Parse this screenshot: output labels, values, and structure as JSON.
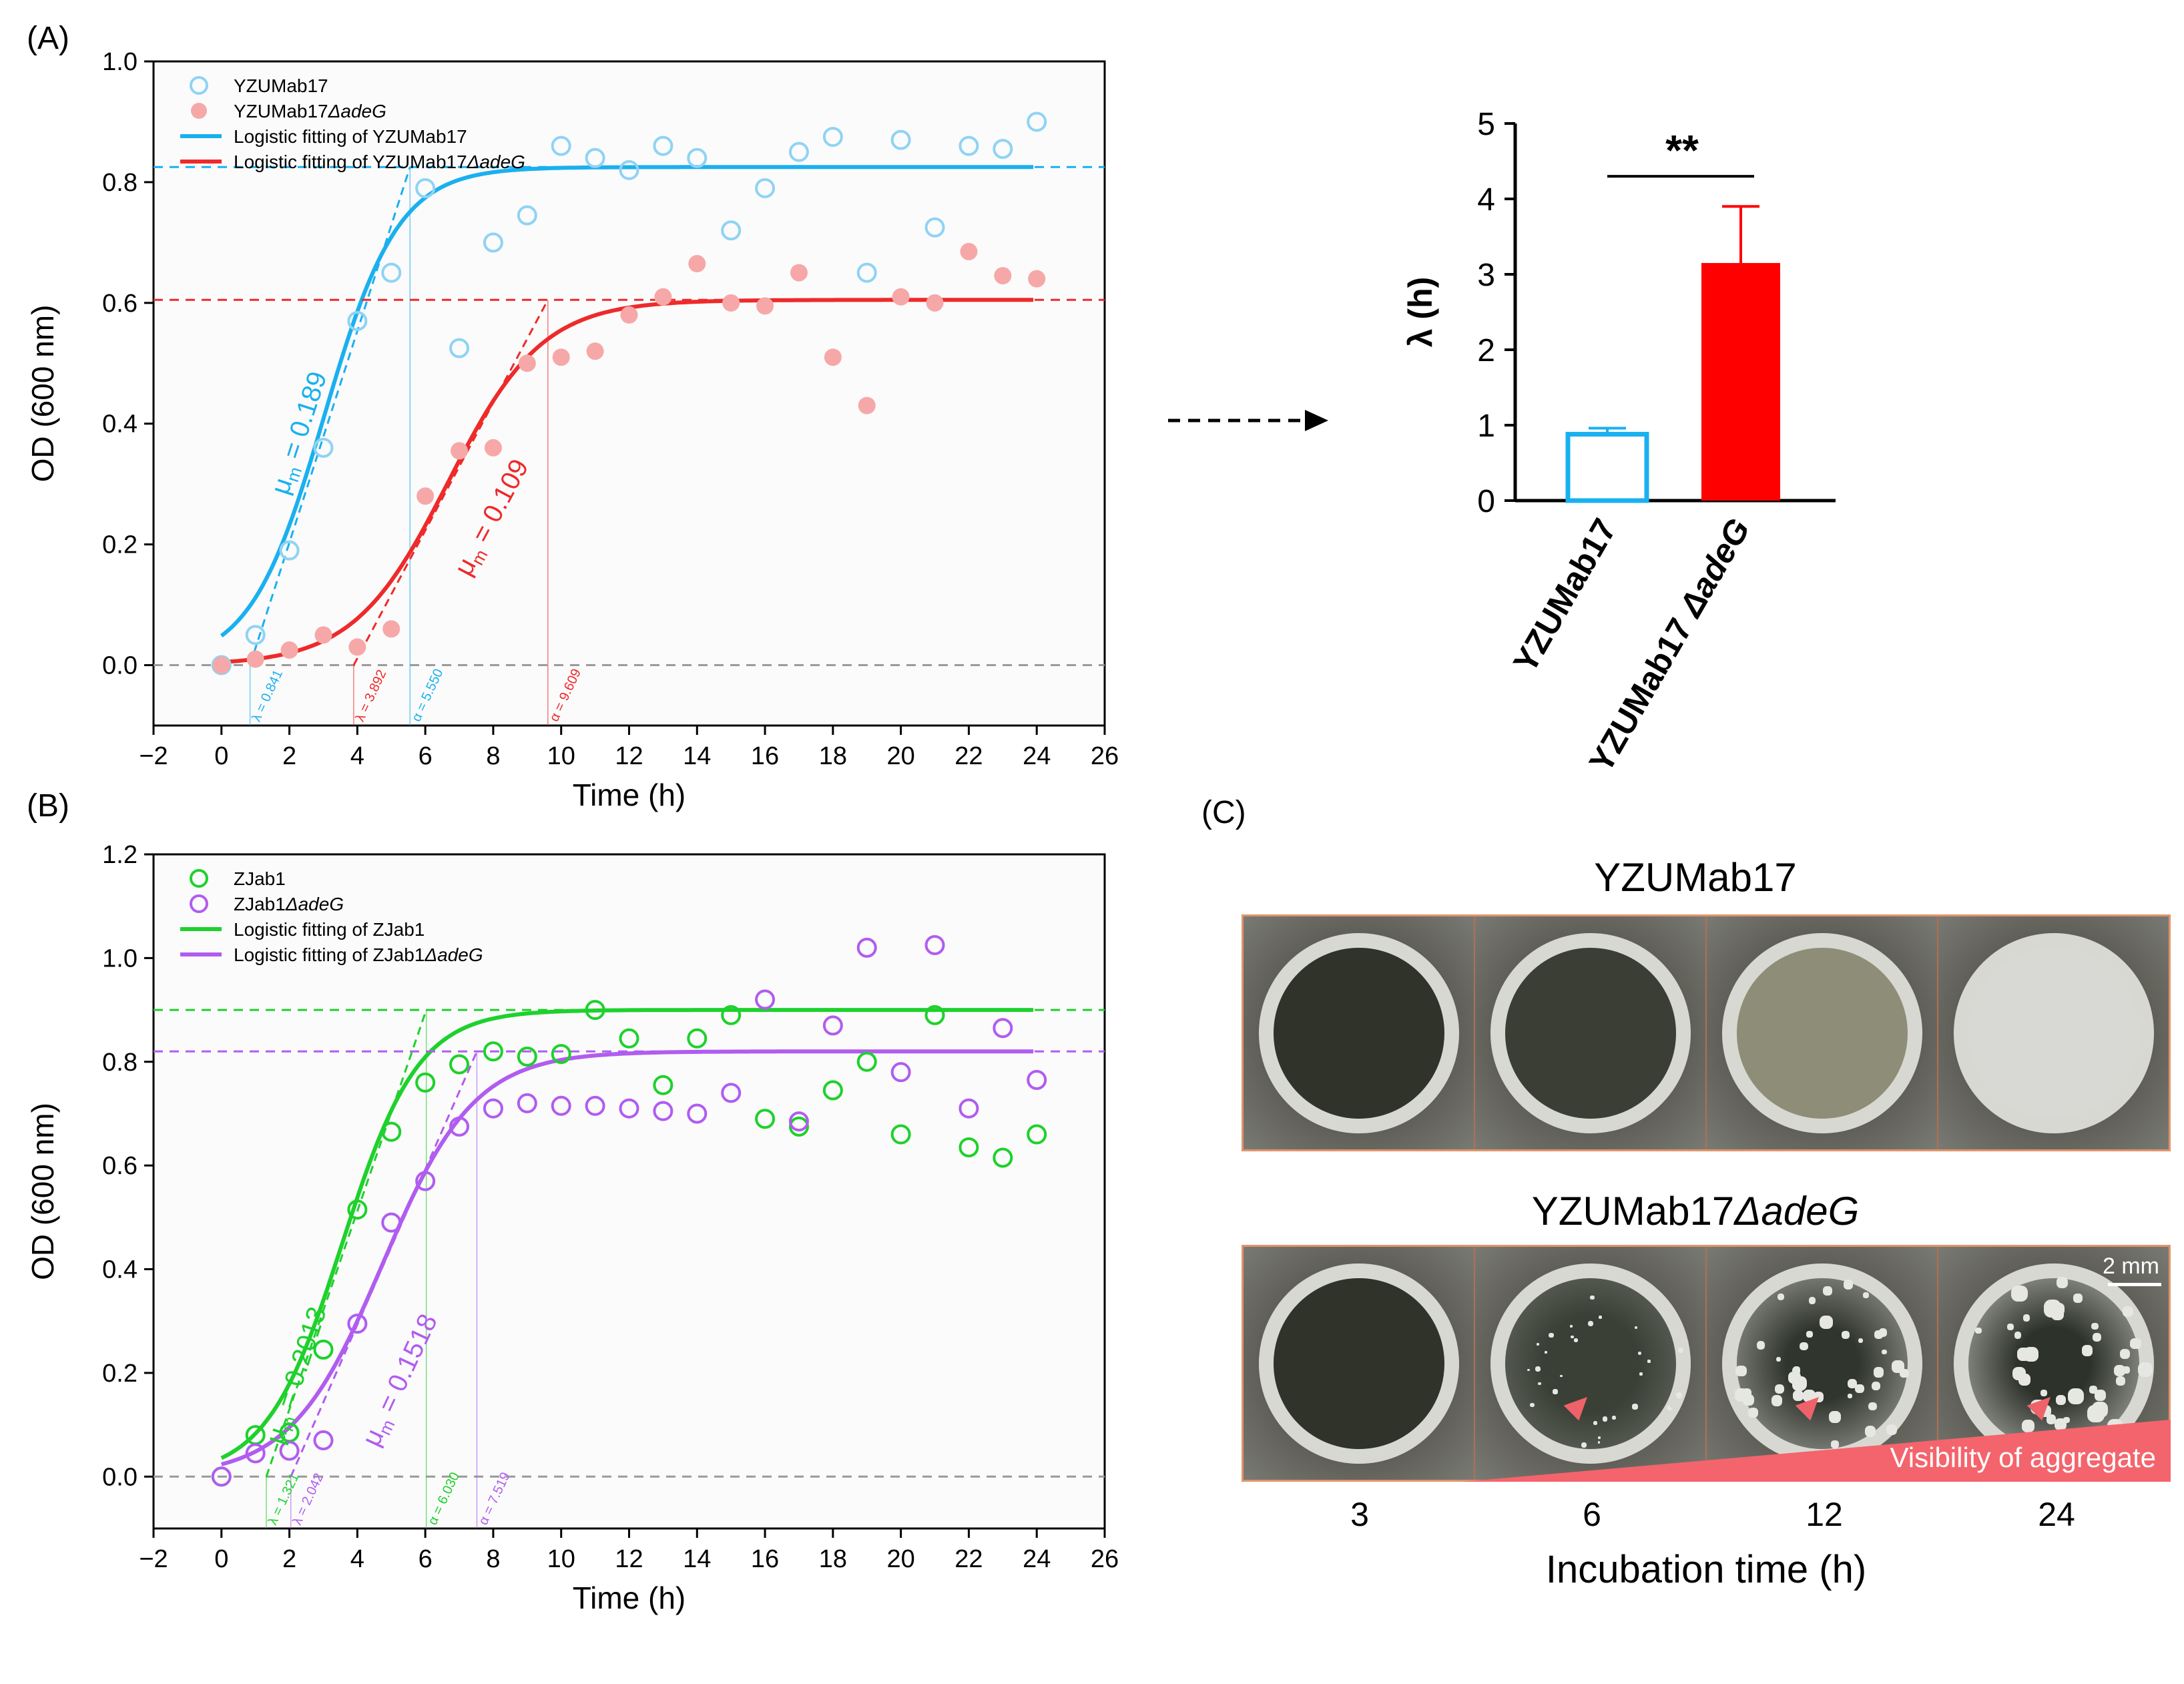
{
  "panels": {
    "A": "(A)",
    "B": "(B)",
    "C": "(C)"
  },
  "colors": {
    "blue": "#1ab0ef",
    "blue_light": "#8fd3f4",
    "red": "#ee2a2a",
    "red_light": "#f6a8a8",
    "green": "#1ed12c",
    "purple": "#b15cf0",
    "bar_red": "#ff0000",
    "arrow_pink": "#f0626a"
  },
  "chart_data": [
    {
      "type": "scatter",
      "panel": "A",
      "xlabel": "Time (h)",
      "ylabel": "OD (600 nm)",
      "xlim": [
        -2,
        26
      ],
      "ylim": [
        -0.1,
        1.0
      ],
      "xticks": [
        "−2",
        "0",
        "2",
        "4",
        "6",
        "8",
        "10",
        "12",
        "14",
        "16",
        "18",
        "20",
        "22",
        "24",
        "26"
      ],
      "yticks": [
        "0.0",
        "0.2",
        "0.4",
        "0.6",
        "0.8",
        "1.0"
      ],
      "legend": {
        "s1": "YZUMab17",
        "s2_prefix": "YZUMab17",
        "s2_italic": "ΔadeG",
        "f1": "Logistic fitting of YZUMab17",
        "f2_prefix": "Logistic fitting of YZUMab17",
        "f2_italic": "ΔadeG"
      },
      "series": [
        {
          "name": "YZUMab17",
          "x": [
            0,
            1,
            2,
            3,
            4,
            5,
            6,
            7,
            8,
            9,
            10,
            11,
            12,
            13,
            14,
            15,
            16,
            17,
            18,
            19,
            20,
            21,
            22,
            23,
            24
          ],
          "y": [
            0.0,
            0.05,
            0.19,
            0.36,
            0.57,
            0.65,
            0.79,
            0.525,
            0.7,
            0.745,
            0.86,
            0.84,
            0.82,
            0.86,
            0.84,
            0.72,
            0.79,
            0.85,
            0.875,
            0.65,
            0.87,
            0.725,
            0.86,
            0.855,
            0.9
          ]
        },
        {
          "name": "YZUMab17ΔadeG",
          "x": [
            0,
            1,
            2,
            3,
            4,
            5,
            6,
            7,
            8,
            9,
            10,
            11,
            12,
            13,
            14,
            15,
            16,
            17,
            18,
            19,
            20,
            21,
            22,
            23,
            24
          ],
          "y": [
            0.0,
            0.01,
            0.025,
            0.05,
            0.03,
            0.06,
            0.28,
            0.355,
            0.36,
            0.5,
            0.51,
            0.52,
            0.58,
            0.61,
            0.665,
            0.6,
            0.595,
            0.65,
            0.51,
            0.43,
            0.61,
            0.6,
            0.685,
            0.645,
            0.64
          ]
        }
      ],
      "fits": [
        {
          "name": "Logistic fitting of YZUMab17",
          "A": 0.825,
          "mu": 0.189,
          "lambda": 0.841
        },
        {
          "name": "Logistic fitting of YZUMab17ΔadeG",
          "A": 0.605,
          "mu": 0.109,
          "lambda": 3.892
        }
      ],
      "annotations": {
        "mu1": "μm = 0.189",
        "mu2": "μm = 0.109",
        "lam1": "λ = 0.841",
        "lam2": "λ = 3.892",
        "a1": "α = 5.550",
        "a2": "α = 9.609"
      },
      "mu1_val": "= 0.189",
      "mu2_val": "= 0.109",
      "lam1_x": 0.841,
      "lam2_x": 3.892,
      "alpha1_x": 5.55,
      "alpha2_x": 9.609
    },
    {
      "type": "bar",
      "panel": "A-inset",
      "ylabel": "λ (h)",
      "ylim": [
        0,
        5
      ],
      "yticks": [
        "0",
        "1",
        "2",
        "3",
        "4",
        "5"
      ],
      "categories": [
        "YZUMab17",
        "YZUMab17 ΔadeG"
      ],
      "cat2_prefix": "YZUMab17 ",
      "cat2_italic": "ΔadeG",
      "values": [
        0.88,
        3.15
      ],
      "errors": [
        0.08,
        0.75
      ],
      "significance": "**"
    },
    {
      "type": "scatter",
      "panel": "B",
      "xlabel": "Time (h)",
      "ylabel": "OD (600 nm)",
      "xlim": [
        -2,
        26
      ],
      "ylim": [
        -0.1,
        1.2
      ],
      "xticks": [
        "−2",
        "0",
        "2",
        "4",
        "6",
        "8",
        "10",
        "12",
        "14",
        "16",
        "18",
        "20",
        "22",
        "24",
        "26"
      ],
      "yticks": [
        "0.0",
        "0.2",
        "0.4",
        "0.6",
        "0.8",
        "1.0",
        "1.2"
      ],
      "legend": {
        "s1": "ZJab1",
        "s2_prefix": "ZJab1",
        "s2_italic": "ΔadeG",
        "f1": "Logistic fitting of ZJab1",
        "f2_prefix": "Logistic fitting of ZJab1",
        "f2_italic": "ΔadeG"
      },
      "series": [
        {
          "name": "ZJab1",
          "x": [
            0,
            1,
            2,
            3,
            4,
            5,
            6,
            7,
            8,
            9,
            10,
            11,
            12,
            13,
            14,
            15,
            16,
            17,
            18,
            19,
            20,
            21,
            22,
            23,
            24
          ],
          "y": [
            0.0,
            0.08,
            0.085,
            0.245,
            0.515,
            0.665,
            0.76,
            0.795,
            0.82,
            0.81,
            0.815,
            0.9,
            0.845,
            0.755,
            0.845,
            0.89,
            0.69,
            0.675,
            0.745,
            0.8,
            0.66,
            0.89,
            0.635,
            0.615,
            0.66
          ]
        },
        {
          "name": "ZJab1ΔadeG",
          "x": [
            0,
            1,
            2,
            3,
            4,
            5,
            6,
            7,
            8,
            9,
            10,
            11,
            12,
            13,
            14,
            15,
            16,
            17,
            18,
            19,
            20,
            21,
            22,
            23,
            24
          ],
          "y": [
            0.0,
            0.045,
            0.05,
            0.07,
            0.295,
            0.49,
            0.57,
            0.675,
            0.71,
            0.72,
            0.715,
            0.715,
            0.71,
            0.705,
            0.7,
            0.74,
            0.92,
            0.685,
            0.87,
            1.02,
            0.78,
            1.025,
            0.71,
            0.865,
            0.765
          ]
        }
      ],
      "fits": [
        {
          "name": "Logistic fitting of ZJab1",
          "A": 0.9,
          "mu": 0.2013,
          "lambda": 1.321
        },
        {
          "name": "Logistic fitting of ZJab1ΔadeG",
          "A": 0.82,
          "mu": 0.1518,
          "lambda": 2.042
        }
      ],
      "annotations": {
        "mu1": "μm = 0.2013",
        "mu2": "μm = 0.1518",
        "lam1": "λ = 1.321",
        "lam2": "λ = 2.042",
        "a1": "α = 6.030",
        "a2": "α = 7.519"
      },
      "mu1_val": "= 0.2013",
      "mu2_val": "= 0.1518",
      "lam1_x": 1.321,
      "lam2_x": 2.042,
      "alpha1_x": 6.03,
      "alpha2_x": 7.519
    }
  ],
  "panel_c": {
    "title_top": "YZUMab17",
    "title_bottom_prefix": "YZUMab17",
    "title_bottom_italic": "ΔadeG",
    "scale_bar": "2 mm",
    "visibility_label": "Visibility of aggregate",
    "times": [
      "3",
      "6",
      "12",
      "24"
    ],
    "xlabel": "Incubation time (h)"
  }
}
